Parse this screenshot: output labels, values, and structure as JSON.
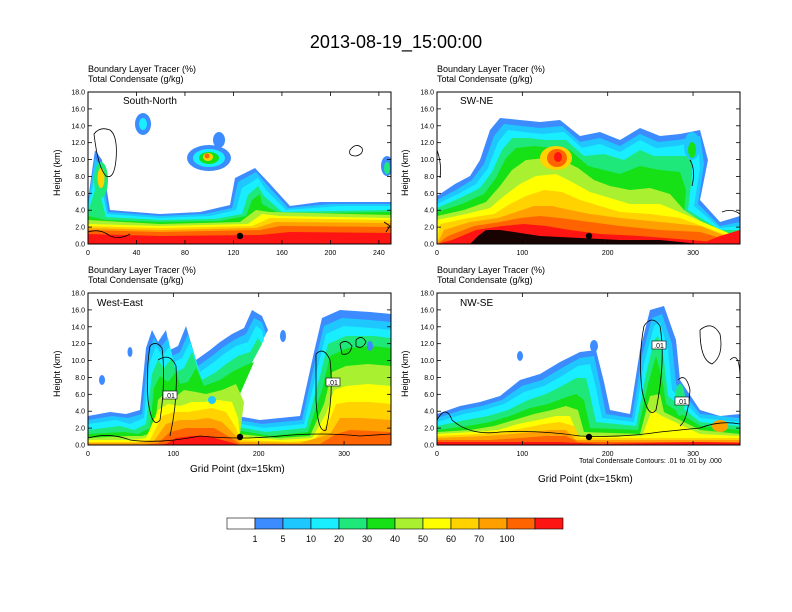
{
  "figure": {
    "title": "2013-08-19_15:00:00",
    "contour_note": "Total Condensate Contours: .01 to .01 by .000",
    "colorbar_labels": [
      "1",
      "5",
      "10",
      "20",
      "30",
      "40",
      "50",
      "60",
      "70",
      "100"
    ],
    "colorbar_colors": [
      "#ffffff",
      "#3d8cff",
      "#1ec8ff",
      "#18eeff",
      "#1ee87a",
      "#16e016",
      "#a8f030",
      "#ffff00",
      "#ffd200",
      "#ffa000",
      "#ff6400",
      "#ff1414"
    ]
  },
  "panels": [
    {
      "header_line1": "Boundary Layer Tracer   (%)",
      "header_line2": "Total Condensate   (g/kg)",
      "label": "South-North",
      "ylabel": "Height (km)",
      "xlabel": "",
      "contour_label": ""
    },
    {
      "header_line1": "Boundary Layer Tracer   (%)",
      "header_line2": "Total Condensate   (g/kg)",
      "label": "SW-NE",
      "ylabel": "Height (km)",
      "xlabel": "",
      "contour_label": ""
    },
    {
      "header_line1": "Boundary Layer Tracer   (%)",
      "header_line2": "Total Condensate   (g/kg)",
      "label": "West-East",
      "ylabel": "Height (km)",
      "xlabel": "Grid Point (dx=15km)",
      "contour_label": ".01"
    },
    {
      "header_line1": "Boundary Layer Tracer   (%)",
      "header_line2": "Total Condensate   (g/kg)",
      "label": "NW-SE",
      "ylabel": "Height (km)",
      "xlabel": "Grid Point (dx=15km)",
      "contour_label": ".01"
    }
  ],
  "chart_data": [
    {
      "type": "heatmap",
      "title": "South-North",
      "ylabel": "Height (km)",
      "xlabel": "",
      "xlim": [
        0,
        250
      ],
      "ylim": [
        0,
        18
      ],
      "xticks": [
        "0",
        "40",
        "80",
        "120",
        "160",
        "200",
        "240"
      ],
      "yticks": [
        "0.0",
        "2.0",
        "4.0",
        "6.0",
        "8.0",
        "10.0",
        "12.0",
        "14.0",
        "16.0",
        "18.0"
      ]
    },
    {
      "type": "heatmap",
      "title": "SW-NE",
      "ylabel": "Height (km)",
      "xlabel": "",
      "xlim": [
        0,
        355
      ],
      "ylim": [
        0,
        18
      ],
      "xticks": [
        "0",
        "100",
        "200",
        "300"
      ],
      "yticks": [
        "0.0",
        "2.0",
        "4.0",
        "6.0",
        "8.0",
        "10.0",
        "12.0",
        "14.0",
        "16.0",
        "18.0"
      ]
    },
    {
      "type": "heatmap",
      "title": "West-East",
      "ylabel": "Height (km)",
      "xlabel": "Grid Point (dx=15km)",
      "xlim": [
        0,
        355
      ],
      "ylim": [
        0,
        18
      ],
      "xticks": [
        "0",
        "100",
        "200",
        "300"
      ],
      "yticks": [
        "0.0",
        "2.0",
        "4.0",
        "6.0",
        "8.0",
        "10.0",
        "12.0",
        "14.0",
        "16.0",
        "18.0"
      ]
    },
    {
      "type": "heatmap",
      "title": "NW-SE",
      "ylabel": "Height (km)",
      "xlabel": "Grid Point (dx=15km)",
      "xlim": [
        0,
        355
      ],
      "ylim": [
        0,
        18
      ],
      "xticks": [
        "0",
        "100",
        "200",
        "300"
      ],
      "yticks": [
        "0.0",
        "2.0",
        "4.0",
        "6.0",
        "8.0",
        "10.0",
        "12.0",
        "14.0",
        "16.0",
        "18.0"
      ]
    }
  ]
}
